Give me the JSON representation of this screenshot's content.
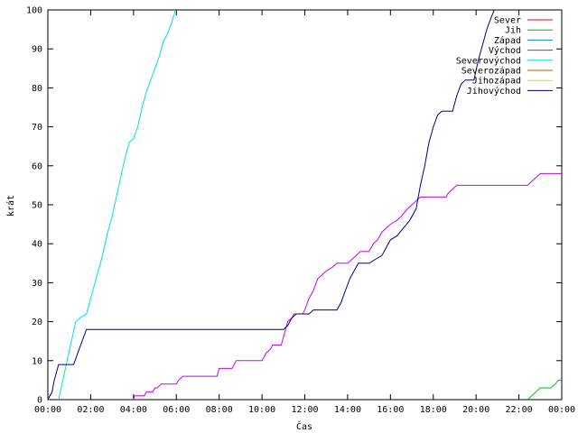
{
  "chart_data": {
    "type": "line",
    "title": "",
    "xlabel": "Čas",
    "ylabel": "krát",
    "x_unit": "hours",
    "xlim": [
      0,
      24
    ],
    "ylim": [
      0,
      100
    ],
    "x_ticks": [
      0,
      2,
      4,
      6,
      8,
      10,
      12,
      14,
      16,
      18,
      20,
      22,
      24
    ],
    "x_tick_labels": [
      "00:00",
      "02:00",
      "04:00",
      "06:00",
      "08:00",
      "10:00",
      "12:00",
      "14:00",
      "16:00",
      "18:00",
      "20:00",
      "22:00",
      "00:00"
    ],
    "y_ticks": [
      0,
      10,
      20,
      30,
      40,
      50,
      60,
      70,
      80,
      90,
      100
    ],
    "y_tick_labels": [
      "0",
      "10",
      "20",
      "30",
      "40",
      "50",
      "60",
      "70",
      "80",
      "90",
      "100"
    ],
    "grid": false,
    "legend_position": "top-right",
    "series": [
      {
        "name": "Sever",
        "color": "#ff0000",
        "points": []
      },
      {
        "name": "Jih",
        "color": "#00c000",
        "points": [
          [
            22.4,
            0
          ],
          [
            22.6,
            1
          ],
          [
            22.8,
            2
          ],
          [
            23.0,
            3
          ],
          [
            23.5,
            3
          ],
          [
            23.7,
            4
          ],
          [
            23.85,
            5
          ],
          [
            24.0,
            5
          ]
        ]
      },
      {
        "name": "Západ",
        "color": "#0080ff",
        "points": []
      },
      {
        "name": "Východ",
        "color": "#c000ff",
        "points": [
          [
            4.0,
            0
          ],
          [
            4.05,
            1
          ],
          [
            4.5,
            1
          ],
          [
            4.6,
            2
          ],
          [
            4.9,
            2
          ],
          [
            5.0,
            3
          ],
          [
            5.1,
            3
          ],
          [
            5.3,
            4
          ],
          [
            6.0,
            4
          ],
          [
            6.1,
            5
          ],
          [
            6.3,
            6
          ],
          [
            7.9,
            6
          ],
          [
            8.0,
            8
          ],
          [
            8.6,
            8
          ],
          [
            8.7,
            9
          ],
          [
            8.8,
            10
          ],
          [
            10.0,
            10
          ],
          [
            10.1,
            11
          ],
          [
            10.2,
            12
          ],
          [
            10.4,
            13
          ],
          [
            10.5,
            14
          ],
          [
            10.9,
            14
          ],
          [
            11.0,
            16
          ],
          [
            11.1,
            18
          ],
          [
            11.2,
            20
          ],
          [
            11.4,
            21
          ],
          [
            11.5,
            22
          ],
          [
            11.9,
            22
          ],
          [
            12.0,
            23
          ],
          [
            12.2,
            26
          ],
          [
            12.4,
            28
          ],
          [
            12.6,
            31
          ],
          [
            12.8,
            32
          ],
          [
            13.0,
            33
          ],
          [
            13.3,
            34
          ],
          [
            13.5,
            35
          ],
          [
            14.0,
            35
          ],
          [
            14.2,
            36
          ],
          [
            14.4,
            37
          ],
          [
            14.6,
            38
          ],
          [
            15.0,
            38
          ],
          [
            15.2,
            40
          ],
          [
            15.4,
            41
          ],
          [
            15.6,
            43
          ],
          [
            15.8,
            44
          ],
          [
            16.0,
            45
          ],
          [
            16.3,
            46
          ],
          [
            16.5,
            47
          ],
          [
            16.8,
            49
          ],
          [
            17.0,
            50
          ],
          [
            17.2,
            51
          ],
          [
            17.4,
            52
          ],
          [
            18.6,
            52
          ],
          [
            18.7,
            53
          ],
          [
            18.9,
            54
          ],
          [
            19.1,
            55
          ],
          [
            22.4,
            55
          ],
          [
            22.6,
            56
          ],
          [
            22.8,
            57
          ],
          [
            23.0,
            58
          ],
          [
            24.0,
            58
          ]
        ]
      },
      {
        "name": "Severovýchod",
        "color": "#00e0e0",
        "points": [
          [
            0.5,
            0
          ],
          [
            0.7,
            5
          ],
          [
            0.9,
            10
          ],
          [
            1.1,
            15
          ],
          [
            1.3,
            20
          ],
          [
            1.5,
            21
          ],
          [
            1.8,
            22
          ],
          [
            2.0,
            26
          ],
          [
            2.2,
            30
          ],
          [
            2.5,
            36
          ],
          [
            2.8,
            43
          ],
          [
            3.0,
            47
          ],
          [
            3.2,
            52
          ],
          [
            3.4,
            57
          ],
          [
            3.6,
            62
          ],
          [
            3.8,
            66
          ],
          [
            4.0,
            67
          ],
          [
            4.2,
            70
          ],
          [
            4.4,
            75
          ],
          [
            4.6,
            79
          ],
          [
            4.8,
            82
          ],
          [
            5.0,
            85
          ],
          [
            5.2,
            88
          ],
          [
            5.4,
            92
          ],
          [
            5.6,
            94
          ],
          [
            5.8,
            97
          ],
          [
            5.95,
            100
          ]
        ]
      },
      {
        "name": "Severozápad",
        "color": "#c06000",
        "points": []
      },
      {
        "name": "Jihozápad",
        "color": "#e0e000",
        "points": []
      },
      {
        "name": "Jihovýchod",
        "color": "#000080",
        "points": [
          [
            0.0,
            0
          ],
          [
            0.2,
            2
          ],
          [
            0.3,
            5
          ],
          [
            0.4,
            7
          ],
          [
            0.5,
            9
          ],
          [
            1.2,
            9
          ],
          [
            1.4,
            12
          ],
          [
            1.6,
            15
          ],
          [
            1.8,
            18
          ],
          [
            11.0,
            18
          ],
          [
            11.2,
            19
          ],
          [
            11.4,
            21
          ],
          [
            11.6,
            22
          ],
          [
            12.0,
            22
          ],
          [
            12.2,
            22
          ],
          [
            12.4,
            23
          ],
          [
            13.5,
            23
          ],
          [
            13.7,
            25
          ],
          [
            13.9,
            28
          ],
          [
            14.1,
            31
          ],
          [
            14.3,
            33
          ],
          [
            14.5,
            35
          ],
          [
            15.0,
            35
          ],
          [
            15.3,
            36
          ],
          [
            15.6,
            37
          ],
          [
            15.8,
            39
          ],
          [
            16.0,
            41
          ],
          [
            16.3,
            42
          ],
          [
            16.6,
            44
          ],
          [
            16.9,
            46
          ],
          [
            17.2,
            49
          ],
          [
            17.4,
            55
          ],
          [
            17.6,
            60
          ],
          [
            17.8,
            66
          ],
          [
            18.0,
            70
          ],
          [
            18.2,
            73
          ],
          [
            18.4,
            74
          ],
          [
            18.9,
            74
          ],
          [
            19.1,
            78
          ],
          [
            19.3,
            81
          ],
          [
            19.5,
            82
          ],
          [
            19.9,
            82
          ],
          [
            20.1,
            87
          ],
          [
            20.3,
            91
          ],
          [
            20.5,
            95
          ],
          [
            20.7,
            98
          ],
          [
            20.85,
            100
          ]
        ]
      }
    ]
  }
}
